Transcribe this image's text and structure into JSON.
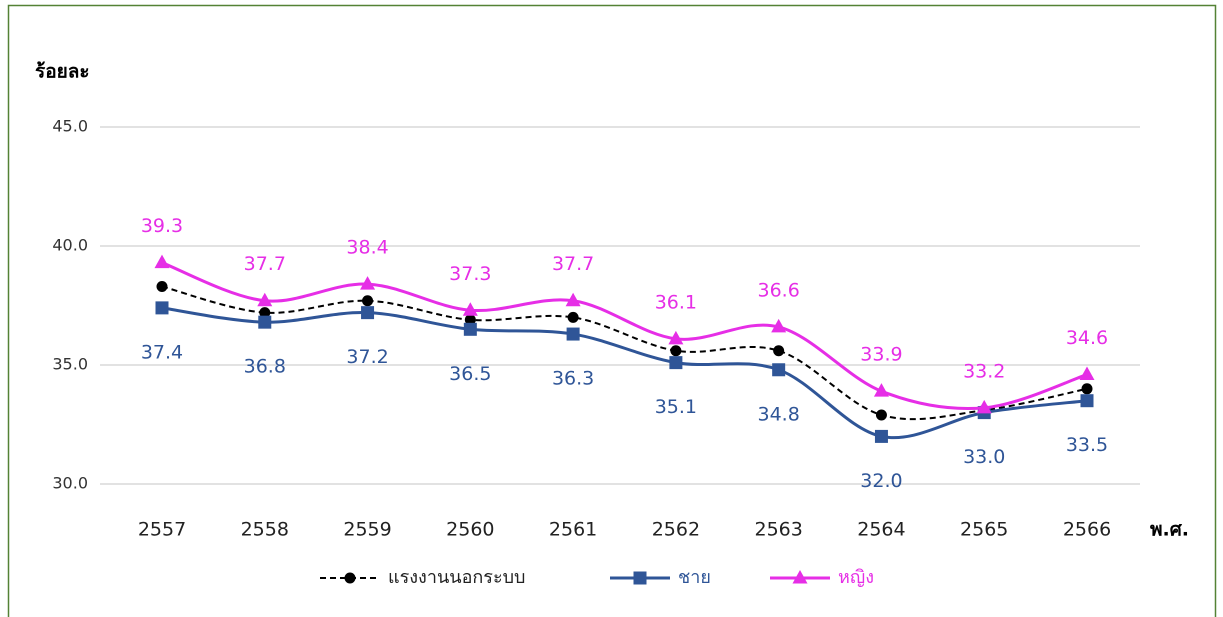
{
  "chart_data": {
    "type": "line",
    "y_label": "ร้อยละ",
    "x_label": "พ.ศ.",
    "categories": [
      "2557",
      "2558",
      "2559",
      "2560",
      "2561",
      "2562",
      "2563",
      "2564",
      "2565",
      "2566"
    ],
    "series": [
      {
        "name": "แรงงานนอกระบบ",
        "color": "#000000",
        "dashed": true,
        "marker": "circle",
        "values": [
          38.3,
          37.2,
          37.7,
          36.9,
          37.0,
          35.6,
          35.6,
          32.9,
          33.1,
          34.0
        ]
      },
      {
        "name": "ชาย",
        "color": "#2f5597",
        "dashed": false,
        "marker": "square",
        "values": [
          37.4,
          36.8,
          37.2,
          36.5,
          36.3,
          35.1,
          34.8,
          32.0,
          33.0,
          33.5
        ],
        "value_labels": [
          "37.4",
          "36.8",
          "37.2",
          "36.5",
          "36.3",
          "35.1",
          "34.8",
          "32.0",
          "33.0",
          "33.5"
        ],
        "label_position": "below"
      },
      {
        "name": "หญิง",
        "color": "#e62ee6",
        "dashed": false,
        "marker": "triangle",
        "values": [
          39.3,
          37.7,
          38.4,
          37.3,
          37.7,
          36.1,
          36.6,
          33.9,
          33.2,
          34.6
        ],
        "value_labels": [
          "39.3",
          "37.7",
          "38.4",
          "37.3",
          "37.7",
          "36.1",
          "36.6",
          "33.9",
          "33.2",
          "34.6"
        ],
        "label_position": "above"
      }
    ],
    "ylim": [
      30,
      45
    ],
    "yticks": [
      {
        "value": 30,
        "label": "30.0"
      },
      {
        "value": 35,
        "label": "35.0"
      },
      {
        "value": 40,
        "label": "40.0"
      },
      {
        "value": 45,
        "label": "45.0"
      }
    ],
    "grid": true,
    "smooth": true,
    "legend": "bottom"
  }
}
